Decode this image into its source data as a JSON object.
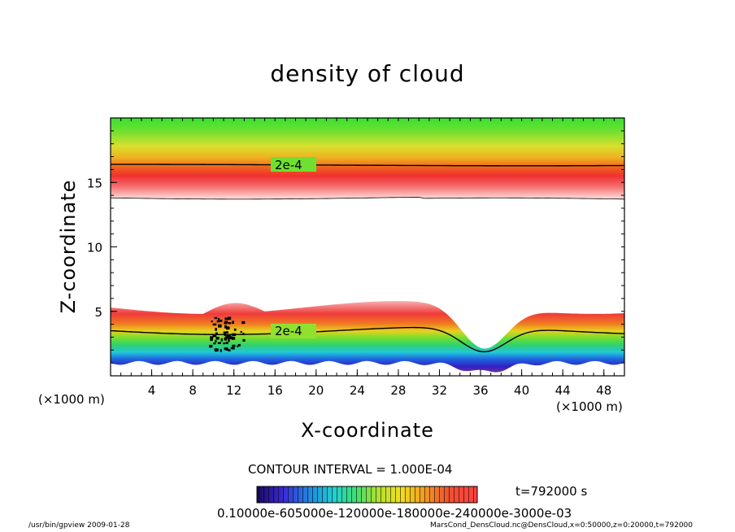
{
  "chart_data": {
    "type": "heatmap",
    "title": "density of cloud",
    "xlabel": "X-coordinate",
    "ylabel": "Z-coordinate",
    "x_unit": "(×1000 m)",
    "x_ticks": [
      4,
      8,
      12,
      16,
      20,
      24,
      28,
      32,
      36,
      40,
      44,
      48
    ],
    "y_ticks": [
      5,
      10,
      15
    ],
    "xlim": [
      0,
      50
    ],
    "ylim": [
      0,
      20
    ],
    "contour_label": "2e-4",
    "contour_interval": "CONTOUR INTERVAL = 1.000E-04",
    "time": "t=792000 s",
    "colorbar_labels": "0.10000e-605000e-120000e-180000e-240000e-3000e-03",
    "colorbar_colors": [
      "#1a0a5e",
      "#3a2bd6",
      "#1f8fe0",
      "#22d0d0",
      "#40e070",
      "#b0e030",
      "#f0e020",
      "#f0a020",
      "#f05030",
      "#ff4040"
    ],
    "upper_layer": {
      "z_top": 19.5,
      "z_bottom": 13.8,
      "contour_z": 16.4
    },
    "lower_layer": {
      "z_bottom": 1.0,
      "z_top": 5.3,
      "contour_z": 3.5
    }
  },
  "footer": {
    "left": "/usr/bin/gpview  2009-01-28",
    "right": "MarsCond_DensCloud.nc@DensCloud,x=0:50000,z=0:20000,t=792000"
  }
}
